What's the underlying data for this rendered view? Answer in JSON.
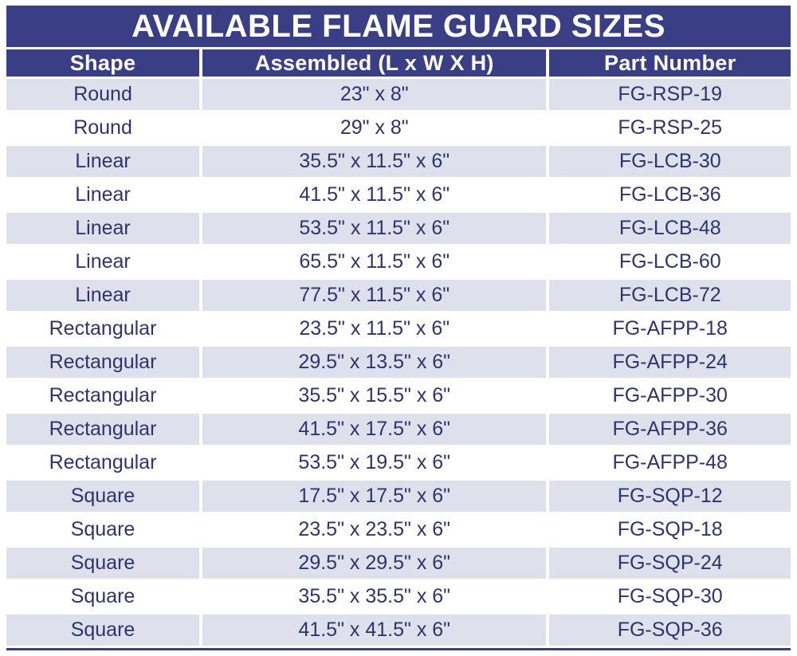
{
  "colors": {
    "banner_navy": "#3a3f85",
    "row_alt_lavender": "#dee0eb",
    "body_text_navy": "#2f336e",
    "row_white": "#ffffff"
  },
  "chart_data": {
    "type": "table",
    "title": "AVAILABLE FLAME GUARD SIZES",
    "columns": [
      "Shape",
      "Assembled (L x W X H)",
      "Part Number"
    ],
    "rows": [
      {
        "shape": "Round",
        "assembled": "23\" x 8\"",
        "part_number": "FG-RSP-19"
      },
      {
        "shape": "Round",
        "assembled": "29\" x 8\"",
        "part_number": "FG-RSP-25"
      },
      {
        "shape": "Linear",
        "assembled": "35.5\" x 11.5\" x 6\"",
        "part_number": "FG-LCB-30"
      },
      {
        "shape": "Linear",
        "assembled": "41.5\" x 11.5\" x 6\"",
        "part_number": "FG-LCB-36"
      },
      {
        "shape": "Linear",
        "assembled": "53.5\" x 11.5\" x 6\"",
        "part_number": "FG-LCB-48"
      },
      {
        "shape": "Linear",
        "assembled": "65.5\" x 11.5\" x 6\"",
        "part_number": "FG-LCB-60"
      },
      {
        "shape": "Linear",
        "assembled": "77.5\" x 11.5\" x 6\"",
        "part_number": "FG-LCB-72"
      },
      {
        "shape": "Rectangular",
        "assembled": "23.5\" x 11.5\" x 6\"",
        "part_number": "FG-AFPP-18"
      },
      {
        "shape": "Rectangular",
        "assembled": "29.5\" x 13.5\" x 6\"",
        "part_number": "FG-AFPP-24"
      },
      {
        "shape": "Rectangular",
        "assembled": "35.5\" x 15.5\" x 6\"",
        "part_number": "FG-AFPP-30"
      },
      {
        "shape": "Rectangular",
        "assembled": "41.5\" x 17.5\" x 6\"",
        "part_number": "FG-AFPP-36"
      },
      {
        "shape": "Rectangular",
        "assembled": "53.5\" x 19.5\" x 6\"",
        "part_number": "FG-AFPP-48"
      },
      {
        "shape": "Square",
        "assembled": "17.5\" x 17.5\" x 6\"",
        "part_number": "FG-SQP-12"
      },
      {
        "shape": "Square",
        "assembled": "23.5\" x 23.5\" x 6\"",
        "part_number": "FG-SQP-18"
      },
      {
        "shape": "Square",
        "assembled": "29.5\" x 29.5\" x 6\"",
        "part_number": "FG-SQP-24"
      },
      {
        "shape": "Square",
        "assembled": "35.5\" x 35.5\" x 6\"",
        "part_number": "FG-SQP-30"
      },
      {
        "shape": "Square",
        "assembled": "41.5\" x 41.5\" x 6\"",
        "part_number": "FG-SQP-36"
      }
    ]
  }
}
